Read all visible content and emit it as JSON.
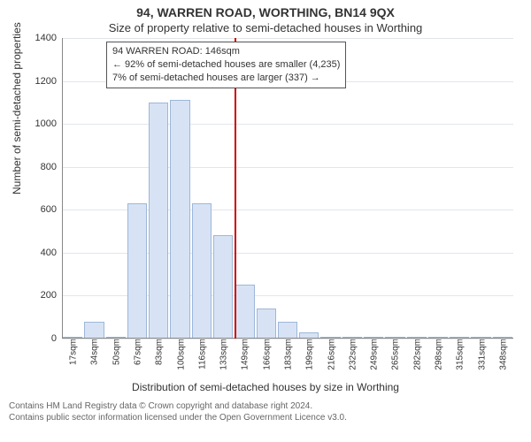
{
  "title": "94, WARREN ROAD, WORTHING, BN14 9QX",
  "subtitle": "Size of property relative to semi-detached houses in Worthing",
  "y_axis_label": "Number of semi-detached properties",
  "x_axis_label": "Distribution of semi-detached houses by size in Worthing",
  "annotation": {
    "line1": "94 WARREN ROAD: 146sqm",
    "line2": "← 92% of semi-detached houses are smaller (4,235)",
    "line3": "7% of semi-detached houses are larger (337) →"
  },
  "footer_line1": "Contains HM Land Registry data © Crown copyright and database right 2024.",
  "footer_line2": "Contains public sector information licensed under the Open Government Licence v3.0.",
  "histogram": {
    "type": "histogram",
    "x_categories": [
      "17sqm",
      "34sqm",
      "50sqm",
      "67sqm",
      "83sqm",
      "100sqm",
      "116sqm",
      "133sqm",
      "149sqm",
      "166sqm",
      "183sqm",
      "199sqm",
      "216sqm",
      "232sqm",
      "249sqm",
      "265sqm",
      "282sqm",
      "298sqm",
      "315sqm",
      "331sqm",
      "348sqm"
    ],
    "values": [
      10,
      80,
      0,
      630,
      1100,
      1110,
      630,
      480,
      250,
      140,
      80,
      30,
      10,
      8,
      5,
      3,
      3,
      2,
      2,
      1,
      1
    ],
    "bar_fill": "#d7e3f4",
    "bar_stroke": "#9db7d9",
    "bar_width_ratio": 0.92,
    "y_ticks": [
      0,
      200,
      400,
      600,
      800,
      1000,
      1200,
      1400
    ],
    "ylim_max": 1400,
    "grid_color": "#e2e6ec",
    "background": "#ffffff",
    "marker_index": 8,
    "marker_color": "#cc0000",
    "title_fontsize": 14,
    "label_fontsize": 12,
    "tick_fontsize": 11
  }
}
